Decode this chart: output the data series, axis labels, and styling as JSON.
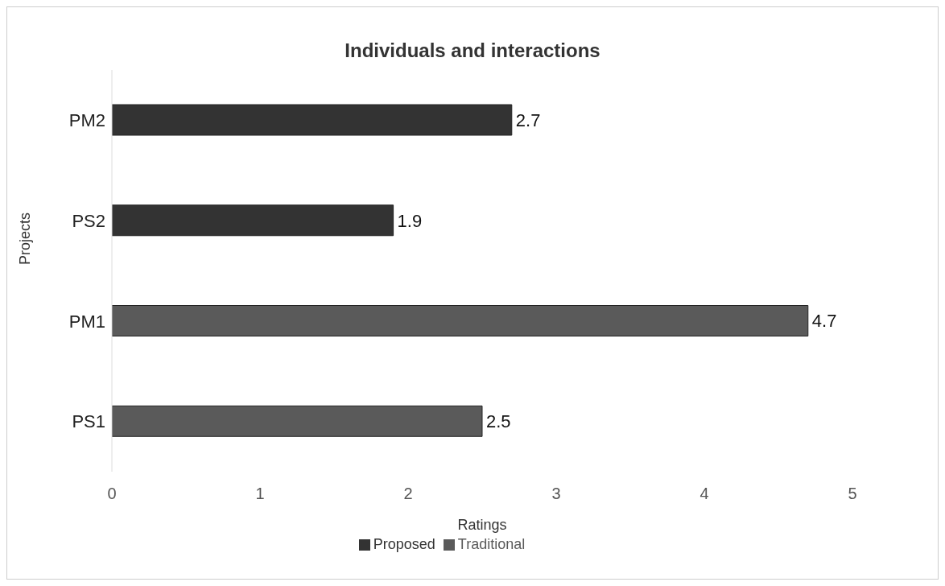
{
  "chart_data": {
    "type": "bar",
    "orientation": "horizontal",
    "stacked": true,
    "title": "Individuals and interactions",
    "xlabel": "Ratings",
    "ylabel": "Projects",
    "categories": [
      "PM2",
      "PS2",
      "PM1",
      "PS1"
    ],
    "series": [
      {
        "name": "Traditional",
        "color": "#5a5a5a",
        "values": [
          null,
          null,
          4.7,
          2.5
        ]
      },
      {
        "name": "Proposed",
        "color": "#333333",
        "values": [
          2.7,
          1.9,
          null,
          null
        ]
      }
    ],
    "xlim": [
      0,
      5
    ],
    "xticks": [
      0,
      1,
      2,
      3,
      4,
      5
    ],
    "data_labels": true,
    "legend": "bottom",
    "grid": false
  }
}
